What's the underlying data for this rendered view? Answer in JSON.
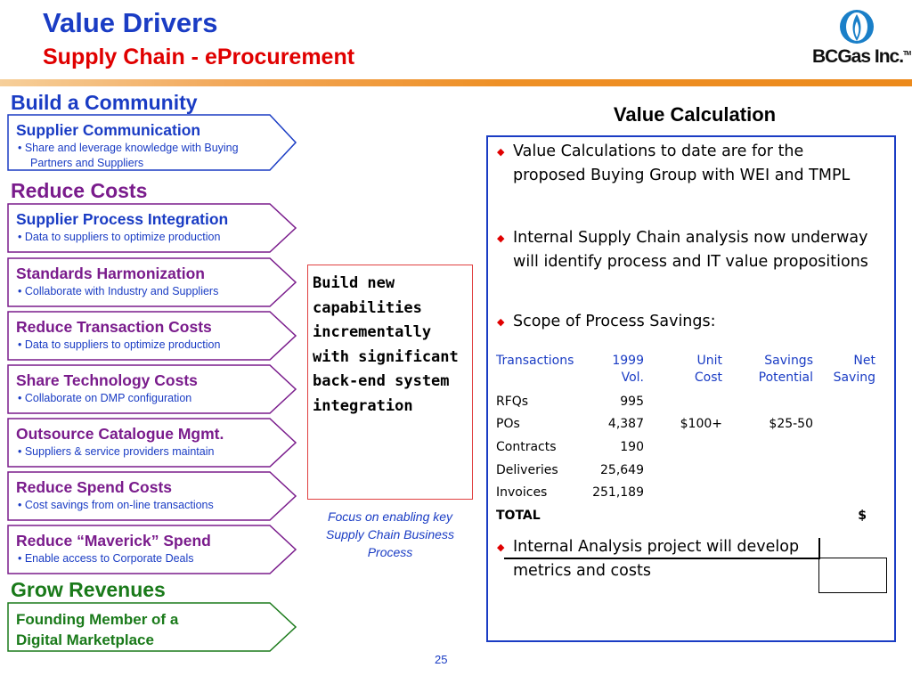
{
  "header": {
    "title": "Value Drivers",
    "subtitle": "Supply Chain - eProcurement",
    "logo_text": "BCGas Inc.",
    "logo_tm": "TM"
  },
  "sections": {
    "build": "Build a Community",
    "reduce": "Reduce Costs",
    "grow": "Grow Revenues"
  },
  "drivers": [
    {
      "title": "Supplier Communication",
      "desc1": "•  Share and leverage knowledge with Buying",
      "desc2": "Partners and Suppliers"
    },
    {
      "title": "Supplier Process Integration",
      "desc": "•  Data to suppliers to optimize production"
    },
    {
      "title": "Standards Harmonization",
      "desc": "•  Collaborate with Industry and Suppliers"
    },
    {
      "title": "Reduce Transaction Costs",
      "desc": "•  Data to suppliers to optimize production"
    },
    {
      "title": "Share Technology Costs",
      "desc": "•  Collaborate on DMP configuration"
    },
    {
      "title": "Outsource Catalogue Mgmt.",
      "desc": "•  Suppliers & service providers maintain"
    },
    {
      "title": "Reduce Spend Costs",
      "desc": "•  Cost savings from on-line transactions"
    },
    {
      "title": "Reduce “Maverick” Spend",
      "desc": "•  Enable access to Corporate Deals"
    },
    {
      "title1": "Founding Member of a",
      "title2": "Digital Marketplace"
    }
  ],
  "middle": {
    "callout": "Build new capabilities incrementally with significant back-end system integration",
    "focus": "Focus on enabling key Supply Chain Business Process"
  },
  "value_calc": {
    "title": "Value Calculation",
    "bullets": [
      "Value Calculations to date are for the proposed Buying Group with WEI and TMPL",
      "Internal Supply Chain analysis now underway will identify process and IT value propositions",
      "Scope of Process Savings:",
      "Internal Analysis project will develop metrics and costs"
    ],
    "table": {
      "headers": {
        "c1": "Transactions",
        "c2a": "1999",
        "c2b": "Vol.",
        "c3a": "Unit",
        "c3b": "Cost",
        "c4a": "Savings",
        "c4b": "Potential",
        "c5a": "Net",
        "c5b": "Saving"
      },
      "rows": [
        {
          "label": "RFQs",
          "vol": "995",
          "cost": "",
          "savings": "",
          "net": ""
        },
        {
          "label": "POs",
          "vol": "4,387",
          "cost": "$100+",
          "savings": "$25-50",
          "net": ""
        },
        {
          "label": "Contracts",
          "vol": "190",
          "cost": "",
          "savings": "",
          "net": ""
        },
        {
          "label": "Deliveries",
          "vol": "25,649",
          "cost": "",
          "savings": "",
          "net": ""
        },
        {
          "label": "Invoices",
          "vol": "251,189",
          "cost": "",
          "savings": "",
          "net": ""
        },
        {
          "label": "TOTAL",
          "vol": "",
          "cost": "",
          "savings": "",
          "net": "$"
        }
      ]
    }
  },
  "footer": {
    "page": "25"
  },
  "colors": {
    "blue": "#1a3cc4",
    "red": "#e00000",
    "purple": "#7a1c8c",
    "green": "#1a7a1a",
    "orange": "#ec8a1c"
  }
}
